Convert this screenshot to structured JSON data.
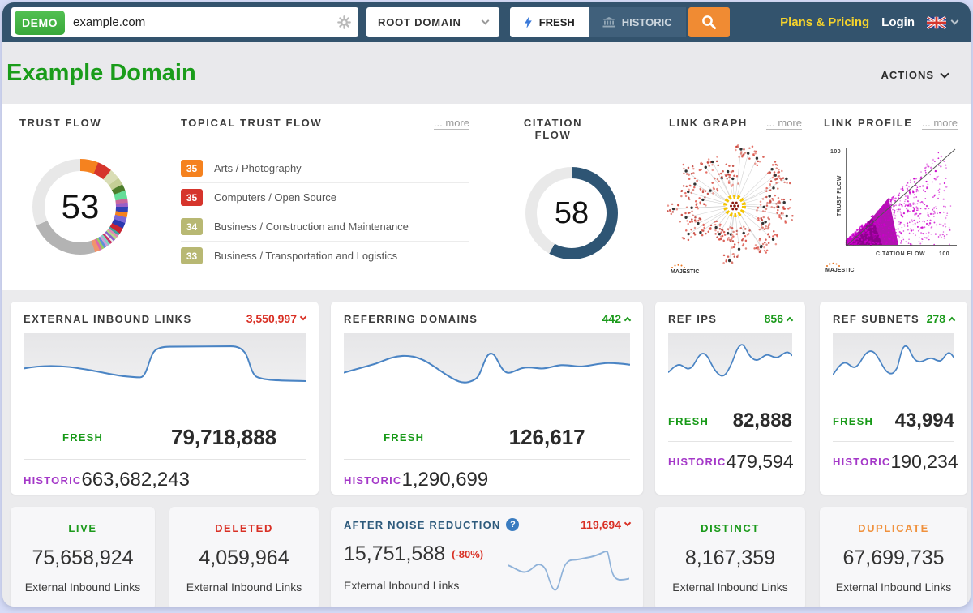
{
  "topbar": {
    "demo_badge": "DEMO",
    "search_value": "example.com",
    "root_domain_label": "ROOT DOMAIN",
    "fresh_tab": "FRESH",
    "historic_tab": "HISTORIC",
    "plans_pricing": "Plans & Pricing",
    "login": "Login"
  },
  "header": {
    "title": "Example Domain",
    "actions_label": "ACTIONS"
  },
  "overview": {
    "trust_flow": {
      "title": "TRUST FLOW",
      "value": "53"
    },
    "topical_trust_flow": {
      "title": "TOPICAL TRUST FLOW",
      "more": "... more",
      "items": [
        {
          "score": "35",
          "label": "Arts / Photography",
          "color": "#f5821f"
        },
        {
          "score": "35",
          "label": "Computers / Open Source",
          "color": "#d6352c"
        },
        {
          "score": "34",
          "label": "Business / Construction and Maintenance",
          "color": "#b8b873"
        },
        {
          "score": "33",
          "label": "Business / Transportation and Logistics",
          "color": "#b8b873"
        }
      ]
    },
    "citation_flow": {
      "title": "CITATION FLOW",
      "value": "58"
    },
    "link_graph": {
      "title": "LINK GRAPH",
      "more": "... more",
      "brand": "MAJESTIC"
    },
    "link_profile": {
      "title": "LINK PROFILE",
      "more": "... more",
      "brand": "MAJESTIC",
      "x_axis": "CITATION FLOW",
      "y_axis": "TRUST FLOW",
      "x_max": "100",
      "y_max": "100"
    }
  },
  "metrics": {
    "external_links": {
      "title": "EXTERNAL INBOUND LINKS",
      "delta": "3,550,997",
      "delta_direction": "down",
      "fresh_label": "FRESH",
      "fresh_value": "79,718,888",
      "historic_label": "HISTORIC",
      "historic_value": "663,682,243"
    },
    "referring_domains": {
      "title": "REFERRING DOMAINS",
      "delta": "442",
      "delta_direction": "up",
      "fresh_label": "FRESH",
      "fresh_value": "126,617",
      "historic_label": "HISTORIC",
      "historic_value": "1,290,699"
    },
    "ref_ips": {
      "title": "REF IPS",
      "delta": "856",
      "delta_direction": "up",
      "fresh_label": "FRESH",
      "fresh_value": "82,888",
      "historic_label": "HISTORIC",
      "historic_value": "479,594"
    },
    "ref_subnets": {
      "title": "REF SUBNETS",
      "delta": "278",
      "delta_direction": "up",
      "fresh_label": "FRESH",
      "fresh_value": "43,994",
      "historic_label": "HISTORIC",
      "historic_value": "190,234"
    }
  },
  "summary": {
    "live": {
      "label": "LIVE",
      "value": "75,658,924",
      "caption": "External Inbound Links"
    },
    "deleted": {
      "label": "DELETED",
      "value": "4,059,964",
      "caption": "External Inbound Links"
    },
    "noise_reduction": {
      "title": "AFTER NOISE REDUCTION",
      "help_icon": "?",
      "delta": "119,694",
      "delta_direction": "down",
      "value": "15,751,588",
      "percent_change": "(-80%)",
      "caption": "External Inbound Links"
    },
    "distinct": {
      "label": "DISTINCT",
      "value": "8,167,359",
      "caption": "External Inbound Links"
    },
    "duplicate": {
      "label": "DUPLICATE",
      "value": "67,699,735",
      "caption": "External Inbound Links"
    }
  },
  "colors": {
    "topbar_blue": "#33536d",
    "accent_green": "#189a18",
    "accent_purple": "#a438c8",
    "accent_red": "#d93025",
    "accent_orange": "#f0913d",
    "citation_blue": "#2e5574",
    "sparkline_blue": "#4a84c4",
    "brand_yellow": "#f6d32b",
    "demo_green": "#45b649",
    "search_orange": "#f08b33",
    "scatter_magenta": "#cc00cc"
  }
}
